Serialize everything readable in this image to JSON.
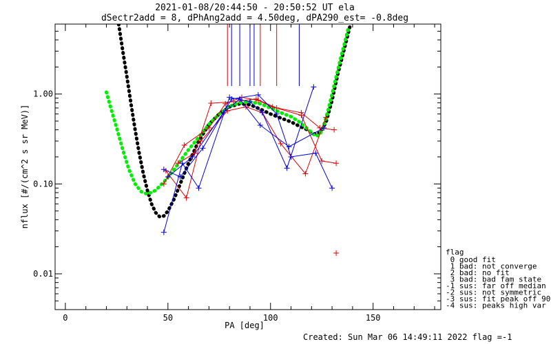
{
  "chart_data": {
    "type": "line",
    "title_line1": "2021-01-08/20:44:50 - 20:50:52 UT ela",
    "title_line2": "dSectr2add = 8, dPhAng2add = 4.50deg, dPA290_est=  -0.8deg",
    "xlabel": "PA [deg]",
    "ylabel": "nflux [#/(cm^2 s sr MeV)]",
    "xlim": [
      -5,
      183
    ],
    "ylim": [
      0.004,
      6
    ],
    "yscale": "log",
    "x_ticks": [
      0,
      50,
      100,
      150
    ],
    "x_tick_labels": [
      "0",
      "50",
      "100",
      "150"
    ],
    "y_ticks": [
      0.01,
      0.1,
      1.0
    ],
    "y_tick_labels": [
      "0.01",
      "0.10",
      "1.00"
    ],
    "grid": false,
    "colors": {
      "red": "#e00000",
      "blue": "#0000e0",
      "green": "#00ee00",
      "black": "#000000"
    },
    "vertical_markers": [
      {
        "x": 79,
        "color": "#e00000"
      },
      {
        "x": 81,
        "color": "#0000e0"
      },
      {
        "x": 85,
        "color": "#0000e0"
      },
      {
        "x": 90,
        "color": "#0000e0"
      },
      {
        "x": 92,
        "color": "#0000e0"
      },
      {
        "x": 95,
        "color": "#e00000"
      },
      {
        "x": 103,
        "color": "#e00000"
      },
      {
        "x": 114,
        "color": "#0000e0"
      }
    ],
    "series": [
      {
        "color": "#e00000",
        "marker": "plus",
        "x": [
          48,
          58,
          70,
          78,
          86,
          94,
          101,
          115,
          125,
          132
        ],
        "y": [
          0.1,
          0.27,
          0.42,
          0.78,
          0.92,
          0.85,
          0.72,
          0.58,
          0.18,
          0.17
        ]
      },
      {
        "color": "#e00000",
        "marker": "plus",
        "x": [
          49,
          59,
          66,
          79,
          88,
          96,
          105,
          117,
          127
        ],
        "y": [
          0.14,
          0.07,
          0.3,
          0.65,
          0.72,
          0.62,
          0.28,
          0.13,
          0.55
        ]
      },
      {
        "color": "#e00000",
        "marker": "plus",
        "x": [
          55,
          63,
          71,
          82,
          93,
          103,
          115,
          124,
          131
        ],
        "y": [
          0.17,
          0.22,
          0.79,
          0.82,
          0.88,
          0.7,
          0.62,
          0.42,
          0.4
        ]
      },
      {
        "color": "#e00000",
        "marker": "plus",
        "x": [
          132
        ],
        "y": [
          0.017
        ]
      },
      {
        "color": "#0000e0",
        "marker": "plus",
        "x": [
          48,
          57,
          65,
          80,
          90,
          96,
          108,
          121
        ],
        "y": [
          0.029,
          0.17,
          0.09,
          0.92,
          0.82,
          0.62,
          0.15,
          1.2
        ]
      },
      {
        "color": "#0000e0",
        "marker": "plus",
        "x": [
          48,
          56,
          67,
          81,
          94,
          103,
          110,
          122,
          130
        ],
        "y": [
          0.145,
          0.12,
          0.25,
          0.88,
          0.98,
          0.6,
          0.2,
          0.22,
          0.09
        ]
      },
      {
        "color": "#0000e0",
        "marker": "plus",
        "x": [
          50,
          62,
          77,
          85,
          95,
          109,
          126
        ],
        "y": [
          0.12,
          0.2,
          0.62,
          0.88,
          0.45,
          0.26,
          0.42
        ]
      }
    ],
    "fits": [
      {
        "color": "#000000",
        "x": [
          26,
          28,
          30,
          32,
          34,
          36,
          38,
          40,
          42,
          44,
          46,
          48,
          50,
          53,
          56,
          60,
          65,
          70,
          75,
          80,
          85,
          90,
          95,
          100,
          105,
          110,
          114,
          118,
          121,
          124,
          127,
          130,
          133,
          136,
          139
        ],
        "y": [
          6.0,
          3.0,
          1.55,
          0.78,
          0.4,
          0.22,
          0.13,
          0.085,
          0.06,
          0.048,
          0.043,
          0.044,
          0.05,
          0.068,
          0.1,
          0.17,
          0.3,
          0.46,
          0.6,
          0.72,
          0.78,
          0.76,
          0.68,
          0.6,
          0.54,
          0.49,
          0.44,
          0.4,
          0.36,
          0.37,
          0.48,
          0.85,
          1.75,
          3.2,
          6.0
        ]
      },
      {
        "color": "#00ee00",
        "x": [
          20,
          22,
          25,
          28,
          31,
          34,
          37,
          40,
          44,
          48,
          52,
          56,
          60,
          65,
          70,
          75,
          80,
          85,
          90,
          95,
          100,
          105,
          110,
          114,
          118,
          122,
          124,
          126,
          128,
          130,
          132,
          134,
          136,
          138
        ],
        "y": [
          1.05,
          0.72,
          0.42,
          0.24,
          0.145,
          0.1,
          0.082,
          0.077,
          0.085,
          0.105,
          0.135,
          0.18,
          0.24,
          0.33,
          0.46,
          0.6,
          0.73,
          0.8,
          0.82,
          0.78,
          0.7,
          0.62,
          0.56,
          0.49,
          0.41,
          0.34,
          0.35,
          0.45,
          0.65,
          1.0,
          1.55,
          2.4,
          3.6,
          5.5
        ]
      }
    ],
    "legend": {
      "placement": "right",
      "header": "flag",
      "entries": [
        " 0 good fit",
        " 1 bad: not converge",
        " 2 bad: no fit",
        " 3 bad: bad fam state",
        "-1 sus: far off median",
        "-2 sus: not symmetric",
        "-3 sus: fit peak off 90",
        "-4 sus: peaks high var"
      ]
    },
    "footer": "Created: Sun Mar 06 14:49:11 2022   flag =-1"
  }
}
